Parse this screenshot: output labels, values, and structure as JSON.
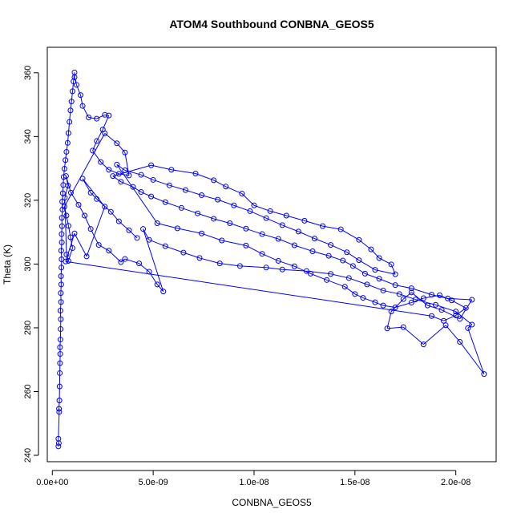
{
  "chart_data": {
    "type": "scatter",
    "title": "ATOM4 Southbound CONBNA_GEOS5",
    "xlabel": "CONBNA_GEOS5",
    "ylabel": "Theta (K)",
    "xlim": [
      -2.5e-10,
      2.2e-08
    ],
    "ylim": [
      238,
      368
    ],
    "x_ticks": [
      0,
      5e-09,
      1e-08,
      1.5e-08,
      2e-08
    ],
    "x_tick_labels": [
      "0.0e+00",
      "5.0e-09",
      "1.0e-08",
      "1.5e-08",
      "2.0e-08"
    ],
    "y_ticks": [
      240,
      260,
      280,
      300,
      320,
      340,
      360
    ],
    "y_tick_labels": [
      "240",
      "260",
      "280",
      "300",
      "320",
      "340",
      "360"
    ],
    "grid": false,
    "marker": "open-circle",
    "color": "#0000ff",
    "series": [
      {
        "points": [
          [
            3e-10,
            242.8
          ],
          [
            3.2e-10,
            243.8
          ],
          [
            3e-10,
            245.2
          ],
          [
            3.4e-10,
            253.6
          ],
          [
            3.3e-10,
            254.6
          ],
          [
            3.5e-10,
            257.2
          ],
          [
            3.6e-10,
            261.6
          ],
          [
            3.7e-10,
            265.8
          ],
          [
            3.8e-10,
            268.9
          ],
          [
            3.9e-10,
            271.8
          ],
          [
            3.8e-10,
            273.9
          ],
          [
            4e-10,
            276.3
          ],
          [
            4.1e-10,
            279.6
          ],
          [
            4.2e-10,
            282.7
          ],
          [
            4e-10,
            285.4
          ],
          [
            4.3e-10,
            288.1
          ],
          [
            4.2e-10,
            290.9
          ],
          [
            4.4e-10,
            293.6
          ],
          [
            4.3e-10,
            296.2
          ],
          [
            4.5e-10,
            298.9
          ],
          [
            4.6e-10,
            301.5
          ],
          [
            4.4e-10,
            304.2
          ],
          [
            4.7e-10,
            306.8
          ],
          [
            4.6e-10,
            309.4
          ],
          [
            4.8e-10,
            311.9
          ],
          [
            4.7e-10,
            314.5
          ],
          [
            5e-10,
            317.1
          ],
          [
            4.9e-10,
            319.6
          ],
          [
            5.2e-10,
            322.2
          ],
          [
            5.4e-10,
            324.8
          ],
          [
            5.6e-10,
            327.3
          ],
          [
            6e-10,
            329.9
          ],
          [
            6.5e-10,
            332.6
          ],
          [
            7e-10,
            335.2
          ],
          [
            7.6e-10,
            338.0
          ],
          [
            8e-10,
            341.1
          ],
          [
            8.5e-10,
            344.6
          ],
          [
            9e-10,
            348.2
          ],
          [
            9.5e-10,
            351.0
          ],
          [
            1e-09,
            354.2
          ],
          [
            1.05e-09,
            357.3
          ],
          [
            1.1e-09,
            360.1
          ],
          [
            1.1e-09,
            358.6
          ],
          [
            1.2e-09,
            356.2
          ],
          [
            1.4e-09,
            353.0
          ],
          [
            1.5e-09,
            349.6
          ],
          [
            1.8e-09,
            346.0
          ],
          [
            2.2e-09,
            345.6
          ],
          [
            2.6e-09,
            346.8
          ],
          [
            2.8e-09,
            346.6
          ],
          [
            2.5e-09,
            342.2
          ],
          [
            2.2e-09,
            338.6
          ],
          [
            2e-09,
            335.6
          ],
          [
            2.4e-09,
            332.0
          ],
          [
            2.8e-09,
            329.6
          ],
          [
            3.3e-09,
            328.3
          ],
          [
            3.8e-09,
            327.8
          ],
          [
            3.6e-09,
            335.0
          ],
          [
            3.2e-09,
            337.9
          ],
          [
            2.6e-09,
            341.0
          ],
          [
            6e-10,
            318.0
          ],
          [
            7e-10,
            315.2
          ],
          [
            8e-10,
            312.0
          ],
          [
            9e-10,
            308.4
          ],
          [
            1e-09,
            305.0
          ],
          [
            8e-10,
            301.0
          ],
          [
            7e-10,
            303.0
          ],
          [
            6.2e-10,
            320.8
          ],
          [
            7.8e-10,
            324.6
          ],
          [
            6.8e-10,
            327.6
          ],
          [
            9.2e-10,
            322.4
          ],
          [
            1.3e-09,
            318.6
          ],
          [
            1.6e-09,
            315.2
          ],
          [
            1.9e-09,
            311.0
          ],
          [
            2.3e-09,
            306.0
          ],
          [
            2.8e-09,
            304.2
          ],
          [
            3.4e-09,
            300.6
          ],
          [
            3.6e-09,
            301.6
          ],
          [
            4.3e-09,
            300.2
          ],
          [
            4.8e-09,
            297.6
          ],
          [
            5.2e-09,
            293.6
          ],
          [
            5.5e-09,
            291.4
          ],
          [
            4.5e-09,
            311.0
          ],
          [
            4.8e-09,
            307.6
          ],
          [
            5.6e-09,
            305.6
          ],
          [
            6.5e-09,
            303.6
          ],
          [
            7.3e-09,
            301.9
          ],
          [
            8.3e-09,
            300.2
          ],
          [
            9.3e-09,
            299.4
          ],
          [
            1.06e-08,
            298.9
          ],
          [
            1.14e-08,
            298.3
          ],
          [
            1.26e-08,
            297.8
          ],
          [
            1.38e-08,
            296.9
          ],
          [
            1.47e-08,
            295.6
          ],
          [
            1.56e-08,
            293.6
          ],
          [
            1.64e-08,
            291.7
          ],
          [
            1.72e-08,
            290.6
          ],
          [
            1.8e-08,
            288.9
          ],
          [
            1.9e-08,
            287.2
          ],
          [
            2e-08,
            285.1
          ],
          [
            2.08e-08,
            281.0
          ],
          [
            2.06e-08,
            279.9
          ],
          [
            2.14e-08,
            265.5
          ],
          [
            2.02e-08,
            275.6
          ],
          [
            1.95e-08,
            280.8
          ],
          [
            1.84e-08,
            274.8
          ],
          [
            1.74e-08,
            280.2
          ],
          [
            1.66e-08,
            279.8
          ],
          [
            1.68e-08,
            285.1
          ],
          [
            1.74e-08,
            289.0
          ],
          [
            1.78e-08,
            291.1
          ],
          [
            1.86e-08,
            287.0
          ],
          [
            1.93e-08,
            285.6
          ],
          [
            2.02e-08,
            282.8
          ],
          [
            2.08e-08,
            288.8
          ],
          [
            1.96e-08,
            289.2
          ],
          [
            1.88e-08,
            290.4
          ],
          [
            1.78e-08,
            292.4
          ],
          [
            1.7e-08,
            293.4
          ],
          [
            1.62e-08,
            295.4
          ],
          [
            1.55e-08,
            297.0
          ],
          [
            1.49e-08,
            299.4
          ],
          [
            1.44e-08,
            301.1
          ],
          [
            1.37e-08,
            302.6
          ],
          [
            1.29e-08,
            304.0
          ],
          [
            1.2e-08,
            305.9
          ],
          [
            1.12e-08,
            307.9
          ],
          [
            1.04e-08,
            309.4
          ],
          [
            9.6e-09,
            311.1
          ],
          [
            8.8e-09,
            312.8
          ],
          [
            8e-09,
            314.2
          ],
          [
            7.2e-09,
            315.9
          ],
          [
            6.4e-09,
            317.6
          ],
          [
            5.6e-09,
            319.4
          ],
          [
            4.9e-09,
            321.2
          ],
          [
            4.4e-09,
            322.6
          ],
          [
            4e-09,
            324.2
          ],
          [
            3.4e-09,
            325.8
          ],
          [
            3e-09,
            327.6
          ],
          [
            4.9e-09,
            331.0
          ],
          [
            5.9e-09,
            329.6
          ],
          [
            7.1e-09,
            328.4
          ],
          [
            8e-09,
            326.3
          ],
          [
            8.6e-09,
            324.3
          ],
          [
            9.4e-09,
            322.1
          ],
          [
            1e-08,
            318.4
          ],
          [
            1.08e-08,
            316.6
          ],
          [
            1.16e-08,
            315.2
          ],
          [
            1.25e-08,
            313.6
          ],
          [
            1.34e-08,
            311.9
          ],
          [
            1.43e-08,
            310.9
          ],
          [
            1.52e-08,
            307.6
          ],
          [
            1.58e-08,
            304.6
          ],
          [
            1.62e-08,
            301.9
          ],
          [
            1.68e-08,
            299.9
          ],
          [
            1.7e-08,
            296.8
          ],
          [
            1.6e-08,
            298.2
          ],
          [
            1.52e-08,
            301.2
          ],
          [
            1.46e-08,
            303.7
          ],
          [
            1.38e-08,
            306.0
          ],
          [
            1.3e-08,
            308.0
          ],
          [
            1.22e-08,
            310.2
          ],
          [
            1.14e-08,
            312.2
          ],
          [
            1.06e-08,
            314.4
          ],
          [
            9.8e-09,
            316.6
          ],
          [
            9e-09,
            318.4
          ],
          [
            8.2e-09,
            320.2
          ],
          [
            7.4e-09,
            321.6
          ],
          [
            6.6e-09,
            323.2
          ],
          [
            5.8e-09,
            324.7
          ],
          [
            5e-09,
            326.4
          ],
          [
            4.4e-09,
            328.0
          ],
          [
            3.6e-09,
            329.4
          ],
          [
            3.2e-09,
            331.2
          ],
          [
            5.2e-09,
            312.8
          ],
          [
            6.2e-09,
            311.2
          ],
          [
            7.4e-09,
            309.6
          ],
          [
            8.4e-09,
            307.4
          ],
          [
            9.6e-09,
            305.8
          ],
          [
            1.04e-08,
            303.2
          ],
          [
            1.12e-08,
            301.0
          ],
          [
            1.2e-08,
            299.3
          ],
          [
            1.28e-08,
            297.0
          ],
          [
            1.36e-08,
            295.0
          ],
          [
            1.45e-08,
            292.9
          ],
          [
            1.5e-08,
            290.6
          ],
          [
            1.54e-08,
            289.4
          ],
          [
            1.6e-08,
            288.0
          ],
          [
            1.64e-08,
            287.0
          ],
          [
            1.7e-08,
            286.4
          ],
          [
            1.78e-08,
            287.9
          ],
          [
            1.84e-08,
            289.3
          ],
          [
            1.92e-08,
            290.2
          ],
          [
            1.98e-08,
            288.6
          ],
          [
            2.05e-08,
            286.2
          ],
          [
            2e-08,
            283.9
          ],
          [
            1.94e-08,
            282.2
          ],
          [
            1.88e-08,
            283.7
          ],
          [
            6.6e-10,
            300.8
          ],
          [
            1.1e-09,
            309.6
          ],
          [
            1.7e-09,
            302.4
          ],
          [
            2.6e-09,
            318.0
          ],
          [
            1.5e-09,
            326.8
          ],
          [
            1.9e-09,
            322.4
          ],
          [
            2.2e-09,
            320.4
          ],
          [
            2.9e-09,
            316.4
          ],
          [
            3.3e-09,
            313.4
          ],
          [
            3.8e-09,
            310.6
          ],
          [
            4.2e-09,
            308.2
          ]
        ]
      }
    ]
  }
}
